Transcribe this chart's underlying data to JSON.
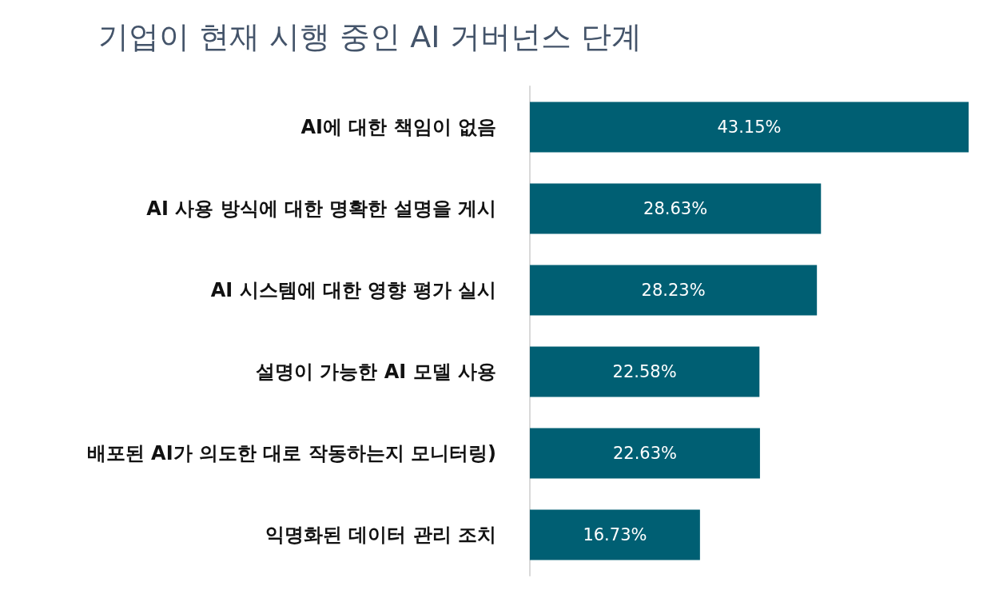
{
  "chart_data": {
    "type": "bar",
    "orientation": "horizontal",
    "title": "기업이 현재 시행 중인 AI 거버넌스 단계",
    "categories": [
      "AI에 대한 책임이 없음",
      "AI 사용 방식에 대한 명확한 설명을 게시",
      "AI 시스템에 대한 영향 평가 실시",
      "설명이 가능한 AI 모델 사용",
      "배포된 AI가 의도한 대로 작동하는지 모니터링)",
      "익명화된 데이터 관리 조치"
    ],
    "values": [
      43.15,
      28.63,
      28.23,
      22.58,
      22.63,
      16.73
    ],
    "value_labels": [
      "43.15%",
      "28.63%",
      "28.23%",
      "22.58%",
      "22.63%",
      "16.73%"
    ],
    "color": "#005f73",
    "tick_labels": "y"
  }
}
